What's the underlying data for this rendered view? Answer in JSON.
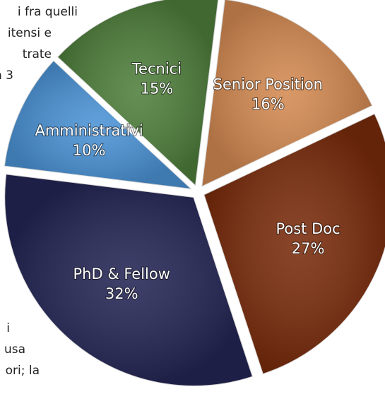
{
  "chart_data": {
    "type": "pie",
    "categories": [
      "Tecnici",
      "Senior Position",
      "Post Doc",
      "PhD & Fellow",
      "Amministrativi"
    ],
    "values": [
      15,
      16,
      27,
      32,
      10
    ],
    "value_labels": [
      "15%",
      "16%",
      "27%",
      "32%",
      "10%"
    ],
    "colors": [
      "#4f7f3c",
      "#d48a52",
      "#7a2c0c",
      "#252655",
      "#4b93d6"
    ],
    "side_text": [
      "i fra quelli",
      "itensi e",
      "trate",
      "n 3",
      "i",
      "usa",
      "ori; la"
    ]
  }
}
